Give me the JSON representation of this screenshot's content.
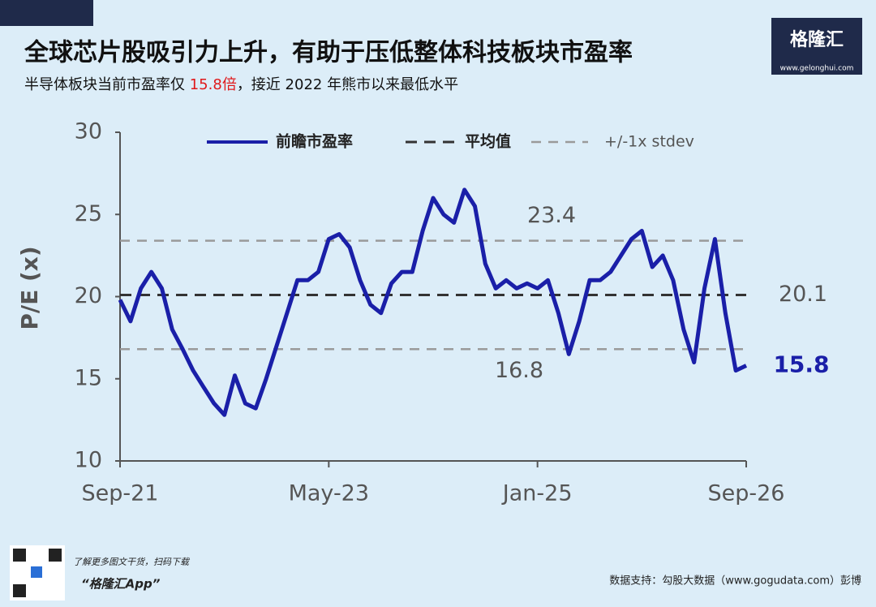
{
  "chart_data": {
    "type": "line",
    "title": "全球芯片股吸引力上升，有助于压低整体科技板块市盈率",
    "subtitle": [
      "半导体板块当前市盈率仅 ",
      "15.8倍",
      "，接近 2022 年熊市以来最低水平"
    ],
    "subtitle_highlight_color": "#e0191b",
    "y_label": "P/E (x)",
    "categories": [
      "Sep-21",
      null,
      null,
      null,
      null,
      null,
      null,
      null,
      null,
      null,
      null,
      null,
      null,
      null,
      null,
      null,
      null,
      null,
      null,
      null,
      "May-23",
      null,
      null,
      null,
      null,
      null,
      null,
      null,
      null,
      null,
      null,
      null,
      null,
      null,
      null,
      null,
      null,
      null,
      null,
      null,
      "Jan-25",
      null,
      null,
      null,
      null,
      null,
      null,
      null,
      null,
      null,
      null,
      null,
      null,
      null,
      null,
      null,
      null,
      null,
      null,
      null,
      "Sep-26"
    ],
    "series": [
      {
        "name": "前瞻市盈率",
        "color": "#1a1fa8",
        "values": [
          19.8,
          18.5,
          20.5,
          21.5,
          20.5,
          18,
          16.8,
          15.5,
          14.5,
          13.5,
          12.8,
          15.2,
          13.5,
          13.2,
          15,
          17,
          19,
          21,
          21,
          21.5,
          23.5,
          23.8,
          23,
          21,
          19.5,
          19,
          20.8,
          21.5,
          21.5,
          24,
          26,
          25,
          24.5,
          26.5,
          25.5,
          22,
          20.5,
          21,
          20.5,
          20.8,
          20.5,
          21,
          19,
          16.5,
          18.5,
          21,
          21,
          21.5,
          22.5,
          23.5,
          24,
          21.8,
          22.5,
          21,
          18,
          16,
          20.5,
          23.5,
          19,
          15.5,
          15.8
        ]
      }
    ],
    "reference_lines": [
      {
        "name": "平均值",
        "color": "#333333",
        "values": [
          20.1
        ]
      },
      {
        "name": "+/-1x stdev",
        "color": "#9a9a9a",
        "values": [
          23.4,
          16.8
        ]
      }
    ],
    "ylim": [
      10,
      30
    ],
    "yticks": [
      10,
      15,
      20,
      25,
      30
    ],
    "grid": false
  },
  "brand": {
    "name": "格隆汇",
    "url": "www.gelonghui.com"
  },
  "footer": {
    "promo": "了解更多图文干货，扫码下载",
    "app": "“格隆汇App”",
    "source": "数据支持：勾股大数据（www.gogudata.com）彭博"
  }
}
